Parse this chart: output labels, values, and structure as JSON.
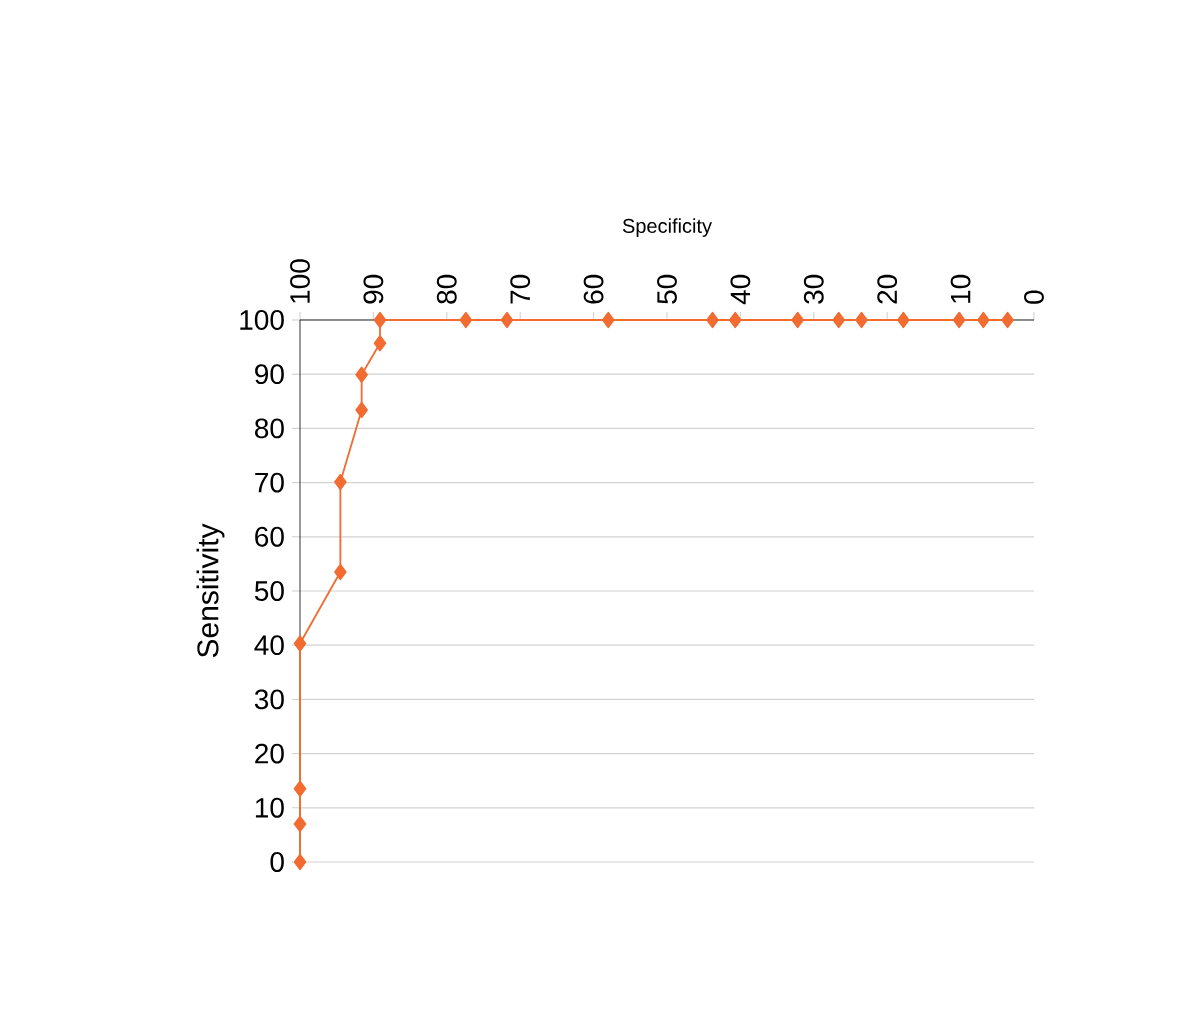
{
  "chart_data": {
    "type": "line",
    "xlabel": "Specificity",
    "ylabel": "Sensitivity",
    "x": [
      100,
      100,
      100,
      100,
      94.5,
      94.5,
      91.6,
      91.6,
      89.1,
      89.1,
      77.4,
      71.8,
      58,
      43.8,
      40.7,
      32.2,
      26.6,
      23.5,
      17.8,
      10.2,
      6.9,
      3.6
    ],
    "series": [
      {
        "color": "#f26b30",
        "values": [
          0,
          7,
          13.5,
          40.3,
          53.5,
          70.1,
          83.4,
          89.9,
          95.7,
          100,
          100,
          100,
          100,
          100,
          100,
          100,
          100,
          100,
          100,
          100,
          100,
          100
        ]
      }
    ],
    "xlim": [
      100,
      0
    ],
    "ylim": [
      0,
      100
    ],
    "xticks": [
      0,
      10,
      20,
      30,
      40,
      50,
      60,
      70,
      80,
      90,
      100
    ],
    "yticks": [
      0,
      10,
      20,
      30,
      40,
      50,
      60,
      70,
      80,
      90,
      100
    ],
    "grid": "y",
    "marker": "diamond",
    "line_style": "solid"
  }
}
